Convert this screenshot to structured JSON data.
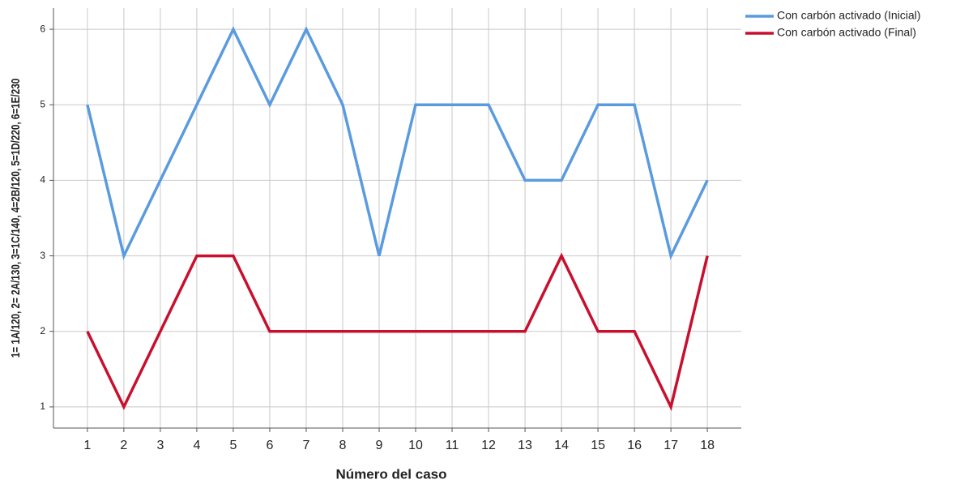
{
  "chart_data": {
    "type": "line",
    "x_label": "Número del caso",
    "y_label": "1= 1A/120, 2= 2A/130, 3=1C/140, 4=2B/120, 5=1D/220, 6=1E/230",
    "x": [
      1,
      2,
      3,
      4,
      5,
      6,
      7,
      8,
      9,
      10,
      11,
      12,
      13,
      14,
      15,
      16,
      17,
      18
    ],
    "series": [
      {
        "name": "Con carbón activado (Inicial)",
        "color": "#5a9be0",
        "values": [
          5,
          3,
          4,
          5,
          6,
          5,
          6,
          5,
          3,
          5,
          5,
          5,
          4,
          4,
          5,
          5,
          3,
          4
        ]
      },
      {
        "name": "Con carbón activado (Final)",
        "color": "#c8102e",
        "values": [
          2,
          1,
          2,
          3,
          3,
          2,
          2,
          2,
          2,
          2,
          2,
          2,
          2,
          3,
          2,
          2,
          1,
          3
        ]
      }
    ],
    "xlim": [
      0.07,
      18.93
    ],
    "xticks": [
      1,
      2,
      3,
      4,
      5,
      6,
      7,
      8,
      9,
      10,
      11,
      12,
      13,
      14,
      15,
      16,
      17,
      18
    ],
    "ylim": [
      0.72,
      6.28
    ],
    "yticks": [
      1,
      2,
      3,
      4,
      5,
      6
    ],
    "grid": true,
    "legend": "top-right"
  }
}
